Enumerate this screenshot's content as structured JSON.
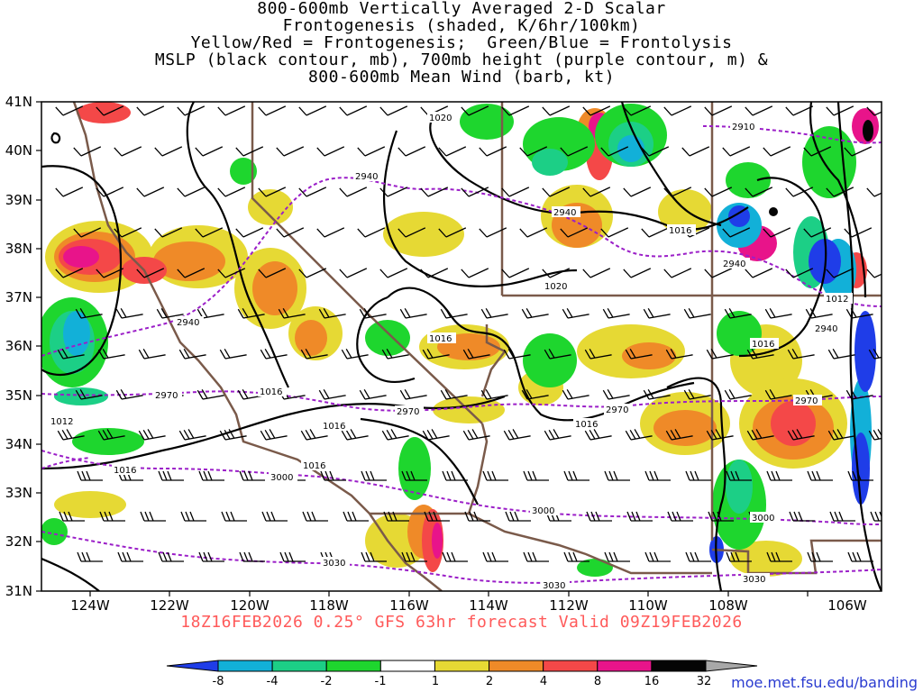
{
  "title": {
    "lines": [
      "800-600mb Vertically Averaged 2-D Scalar",
      "Frontogenesis (shaded, K/6hr/100km)",
      "Yellow/Red = Frontogenesis;  Green/Blue = Frontolysis",
      "MSLP (black contour, mb), 700mb height (purple contour, m) &",
      "800-600mb Mean Wind (barb, kt)"
    ]
  },
  "valid_line": "18Z16FEB2026 0.25° GFS 63hr forecast Valid 09Z19FEB2026",
  "source": "moe.met.fsu.edu/banding",
  "axes": {
    "lat_labels": [
      "41N",
      "40N",
      "39N",
      "38N",
      "37N",
      "36N",
      "35N",
      "34N",
      "33N",
      "32N",
      "31N"
    ],
    "lon_labels": [
      "124W",
      "122W",
      "120W",
      "118W",
      "116W",
      "114W",
      "112W",
      "110W",
      "108W",
      "106W"
    ]
  },
  "colorbar": {
    "labels": [
      "-8",
      "-4",
      "-2",
      "-1",
      "1",
      "2",
      "4",
      "8",
      "16",
      "32"
    ],
    "colors": [
      "#1f3de8",
      "#12b0d8",
      "#1ccf86",
      "#1ed62e",
      "#ffffff",
      "#e6d934",
      "#ef8a28",
      "#f44848",
      "#e8148a",
      "#050505",
      "#a8a8a8"
    ]
  },
  "contour_labels": {
    "mslp": [
      "1020",
      "1016",
      "1020",
      "1016",
      "1012",
      "1016",
      "1016",
      "1016",
      "1016",
      "1012",
      "1016",
      "1016"
    ],
    "height": [
      "2910",
      "2940",
      "2940",
      "2940",
      "2940",
      "2940",
      "2970",
      "2970",
      "2970",
      "2970",
      "3000",
      "3000",
      "3000",
      "3030",
      "3030",
      "3030"
    ]
  },
  "colors": {
    "mslp_contour": "#000000",
    "height_contour": "#9b1fc8",
    "borders": "#7a5a4a",
    "valid_text": "#ff5a5a",
    "source_link": "#2a3bd0"
  }
}
